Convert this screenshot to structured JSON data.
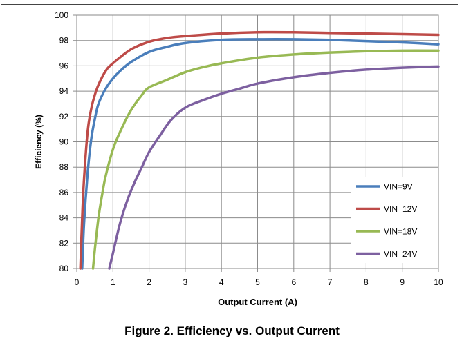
{
  "caption": "Figure 2. Efficiency vs. Output Current",
  "chart_data": {
    "type": "line",
    "title": "",
    "xlabel": "Output Current (A)",
    "ylabel": "Efficiency (%)",
    "xlim": [
      0,
      10
    ],
    "ylim": [
      80,
      100
    ],
    "xticks": [
      0,
      1,
      2,
      3,
      4,
      5,
      6,
      7,
      8,
      9,
      10
    ],
    "yticks": [
      80,
      82,
      84,
      86,
      88,
      90,
      92,
      94,
      96,
      98,
      100
    ],
    "grid": true,
    "legend_position": "bottom-right",
    "series": [
      {
        "name": "VIN=9V",
        "color": "#4a7ebb",
        "x": [
          0.15,
          0.2,
          0.3,
          0.4,
          0.5,
          0.6,
          0.8,
          1.0,
          1.2,
          1.5,
          2.0,
          2.5,
          3.0,
          4.0,
          5.0,
          6.0,
          7.0,
          8.0,
          9.0,
          10.0
        ],
        "y": [
          80.0,
          83.5,
          87.5,
          90.2,
          91.8,
          93.0,
          94.2,
          95.0,
          95.6,
          96.3,
          97.1,
          97.5,
          97.8,
          98.05,
          98.1,
          98.1,
          98.05,
          97.95,
          97.85,
          97.7
        ]
      },
      {
        "name": "VIN=12V",
        "color": "#be4b48",
        "x": [
          0.1,
          0.15,
          0.2,
          0.3,
          0.4,
          0.5,
          0.6,
          0.8,
          1.0,
          1.5,
          2.0,
          2.5,
          3.0,
          4.0,
          5.0,
          6.0,
          7.0,
          8.0,
          9.0,
          10.0
        ],
        "y": [
          80.0,
          84.0,
          87.0,
          90.8,
          92.6,
          93.7,
          94.5,
          95.6,
          96.2,
          97.3,
          97.9,
          98.2,
          98.35,
          98.55,
          98.65,
          98.65,
          98.6,
          98.55,
          98.5,
          98.45
        ]
      },
      {
        "name": "VIN=18V",
        "color": "#98b954",
        "x": [
          0.45,
          0.5,
          0.6,
          0.7,
          0.8,
          1.0,
          1.2,
          1.5,
          1.8,
          2.0,
          2.5,
          3.0,
          3.5,
          4.0,
          5.0,
          6.0,
          7.0,
          8.0,
          9.0,
          10.0
        ],
        "y": [
          80.0,
          81.5,
          84.0,
          85.8,
          87.3,
          89.4,
          90.8,
          92.5,
          93.7,
          94.3,
          94.9,
          95.5,
          95.9,
          96.2,
          96.65,
          96.9,
          97.05,
          97.15,
          97.2,
          97.2
        ]
      },
      {
        "name": "VIN=24V",
        "color": "#7d60a0",
        "x": [
          0.9,
          1.0,
          1.2,
          1.4,
          1.6,
          1.8,
          2.0,
          2.3,
          2.6,
          3.0,
          3.5,
          4.0,
          4.5,
          5.0,
          6.0,
          7.0,
          8.0,
          9.0,
          10.0
        ],
        "y": [
          80.0,
          81.2,
          83.6,
          85.4,
          86.8,
          88.0,
          89.2,
          90.5,
          91.7,
          92.7,
          93.3,
          93.8,
          94.2,
          94.6,
          95.1,
          95.45,
          95.7,
          95.85,
          95.95
        ]
      }
    ]
  }
}
